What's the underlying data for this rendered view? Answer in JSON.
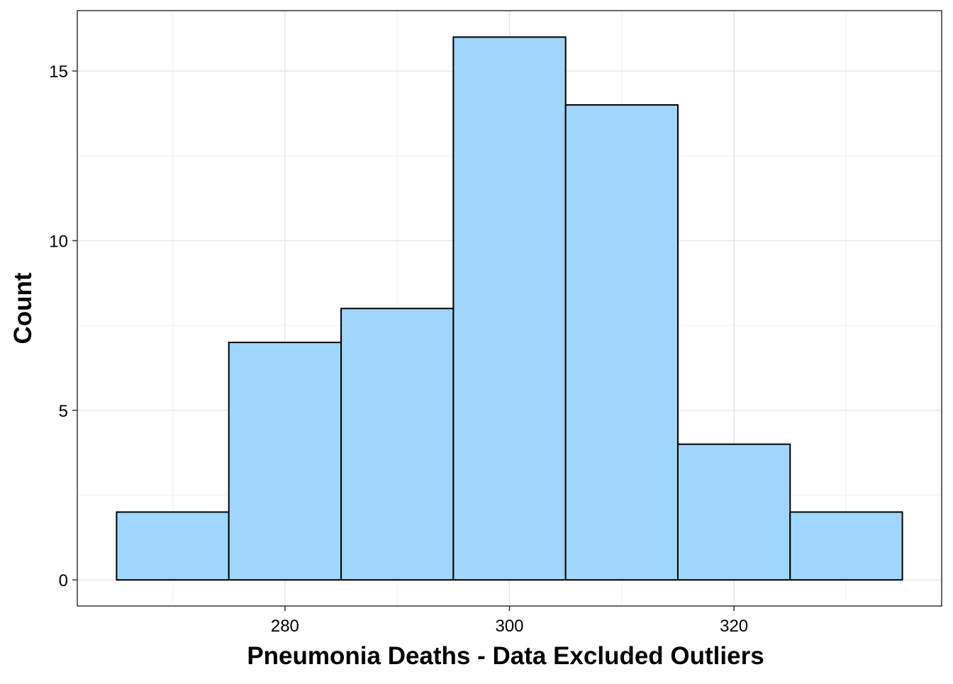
{
  "chart_data": {
    "type": "histogram",
    "xlabel": "Pneumonia Deaths - Data Excluded Outliers",
    "ylabel": "Count",
    "bins": [
      265,
      275,
      285,
      295,
      305,
      315,
      325,
      335
    ],
    "values": [
      2,
      7,
      8,
      16,
      14,
      4,
      2
    ],
    "color": "#a0d6fb",
    "edgecolor": "#000000",
    "xlim": [
      261.5,
      338.5
    ],
    "ylim": [
      -0.77,
      16.78
    ],
    "xticks": [
      280,
      300,
      320
    ],
    "yticks": [
      0,
      5,
      10,
      15
    ],
    "xminorticks": [
      270,
      290,
      310,
      330
    ],
    "yminorticks": [
      2.5,
      7.5,
      12.5
    ],
    "grid": true
  }
}
